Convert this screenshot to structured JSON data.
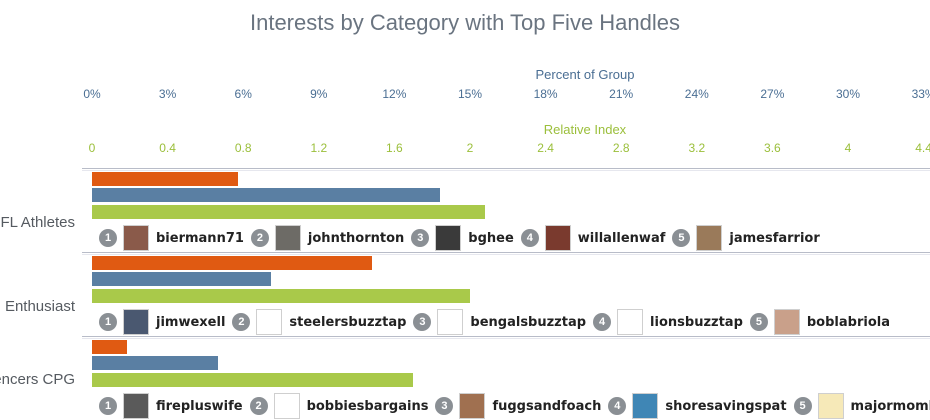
{
  "chart_data": {
    "type": "bar",
    "orientation": "horizontal",
    "title": "Interests by Category with Top Five Handles",
    "top_axis": {
      "label": "Percent of Group",
      "ticks": [
        "0%",
        "3%",
        "6%",
        "9%",
        "12%",
        "15%",
        "18%",
        "21%",
        "24%",
        "27%",
        "30%",
        "33%"
      ],
      "range": [
        0,
        33
      ]
    },
    "relative_axis": {
      "label": "Relative Index",
      "ticks": [
        "0",
        "0.4",
        "0.8",
        "1.2",
        "1.6",
        "2",
        "2.4",
        "2.8",
        "3.2",
        "3.6",
        "4",
        "4.4"
      ],
      "range": [
        0,
        4.4
      ]
    },
    "series_colors": [
      "#e05a12",
      "#5a7fa3",
      "#a9c94a"
    ],
    "categories": [
      {
        "label": "FL Athletes",
        "orange": 5.8,
        "blue": 13.8,
        "green": 2.08,
        "handles": [
          {
            "rank": "1",
            "name": "biermann71",
            "avatar": "#8a5a4a"
          },
          {
            "rank": "2",
            "name": "johnthornton",
            "avatar": "#6d6b66"
          },
          {
            "rank": "3",
            "name": "bghee",
            "avatar": "#3a3a3a"
          },
          {
            "rank": "4",
            "name": "willallenwaf",
            "avatar": "#7a3a2e"
          },
          {
            "rank": "5",
            "name": "jamesfarrior",
            "avatar": "#9a7a5a"
          }
        ]
      },
      {
        "label": "Enthusiast",
        "orange": 11.1,
        "blue": 7.1,
        "green": 2.0,
        "handles": [
          {
            "rank": "1",
            "name": "jimwexell",
            "avatar": "#4a5870"
          },
          {
            "rank": "2",
            "name": "steelersbuzztap",
            "avatar": "#ffffff"
          },
          {
            "rank": "3",
            "name": "bengalsbuzztap",
            "avatar": "#ffffff"
          },
          {
            "rank": "4",
            "name": "lionsbuzztap",
            "avatar": "#ffffff"
          },
          {
            "rank": "5",
            "name": "boblabriola",
            "avatar": "#c9a08a"
          }
        ]
      },
      {
        "label": "encers CPG",
        "orange": 1.4,
        "blue": 5.0,
        "green": 1.7,
        "handles": [
          {
            "rank": "1",
            "name": "firepluswife",
            "avatar": "#5a5a5a"
          },
          {
            "rank": "2",
            "name": "bobbiesbargains",
            "avatar": "#ffffff"
          },
          {
            "rank": "3",
            "name": "fuggsandfoach",
            "avatar": "#a07050"
          },
          {
            "rank": "4",
            "name": "shoresavingspat",
            "avatar": "#3f86b5"
          },
          {
            "rank": "5",
            "name": "majormomblog",
            "avatar": "#f6e9b8"
          }
        ]
      }
    ]
  }
}
